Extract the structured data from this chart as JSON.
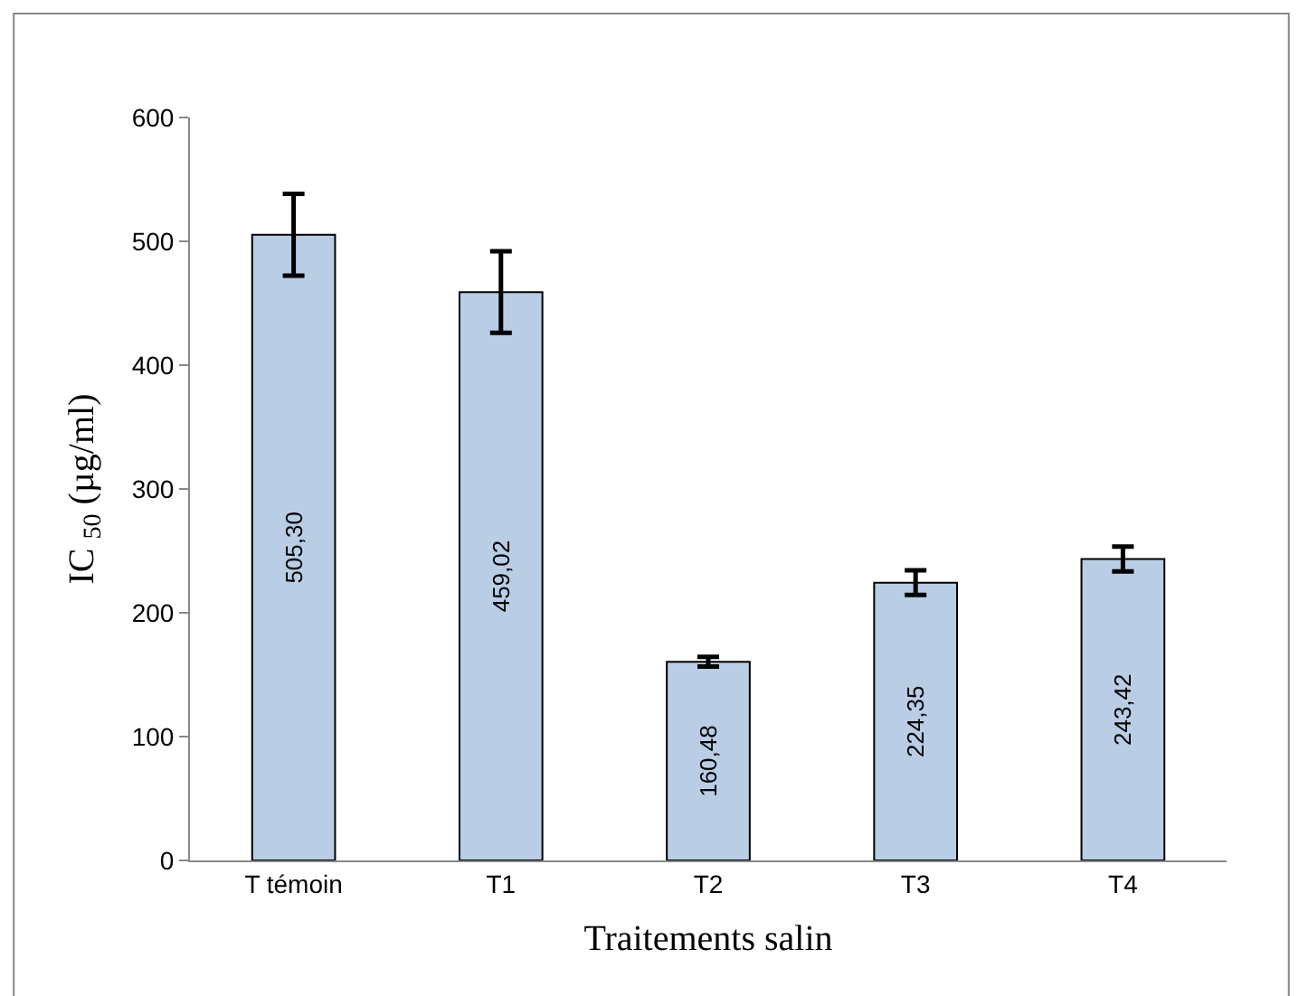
{
  "chart_data": {
    "type": "bar",
    "xlabel": "Traitements salin",
    "ylabel": "IC $_{50}$ (µg/ml)",
    "categories": [
      "T témoin",
      "T1",
      "T2",
      "T3",
      "T4"
    ],
    "values": [
      505.3,
      459.02,
      160.48,
      224.35,
      243.42
    ],
    "value_labels": [
      "505,30",
      "459,02",
      "160,48",
      "224,35",
      "243,42"
    ],
    "errors": [
      33,
      33,
      4,
      10,
      10
    ],
    "color": "#b9cde5",
    "ylim": [
      0,
      600
    ],
    "yticks": [
      0,
      100,
      200,
      300,
      400,
      500,
      600
    ]
  }
}
